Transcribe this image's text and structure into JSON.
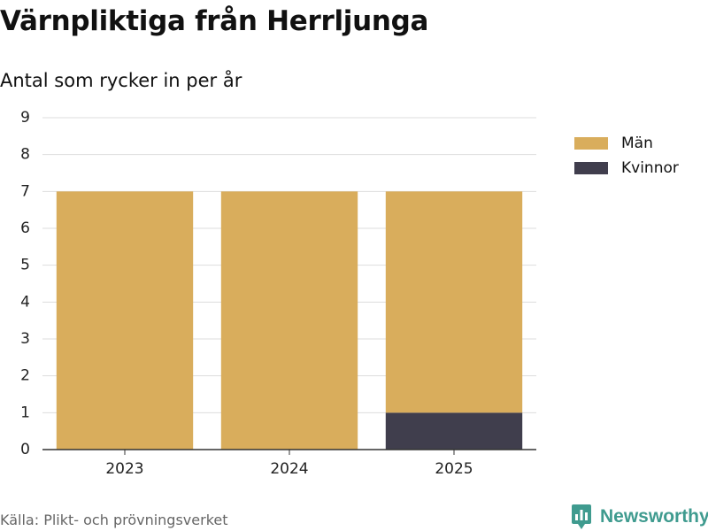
{
  "title": "Värnpliktiga från Herrljunga",
  "subtitle": "Antal som rycker in per år",
  "source": "Källa: Plikt- och prövningsverket",
  "brand": "Newsworthy",
  "colors": {
    "man": "#d9ad5c",
    "kvinnor": "#403e4d",
    "grid": "#dddddd",
    "axis": "#333333",
    "brand": "#3f9b8f"
  },
  "chart_data": {
    "type": "bar",
    "stacked": true,
    "categories": [
      "2023",
      "2024",
      "2025"
    ],
    "series": [
      {
        "name": "Kvinnor",
        "values": [
          0,
          0,
          1
        ],
        "color": "#403e4d"
      },
      {
        "name": "Män",
        "values": [
          7,
          7,
          6
        ],
        "color": "#d9ad5c"
      }
    ],
    "ylim": [
      0,
      9
    ],
    "yticks": [
      0,
      1,
      2,
      3,
      4,
      5,
      6,
      7,
      8,
      9
    ],
    "xlabel": "",
    "ylabel": "",
    "grid": true,
    "legend_position": "right"
  },
  "legend": [
    {
      "label": "Män",
      "color": "#d9ad5c"
    },
    {
      "label": "Kvinnor",
      "color": "#403e4d"
    }
  ]
}
